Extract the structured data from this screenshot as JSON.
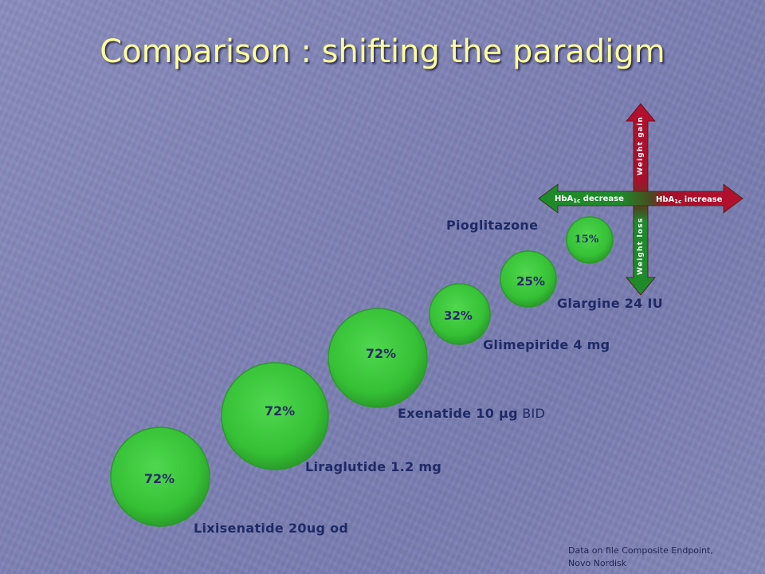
{
  "title": "Comparison : shifting the paradigm",
  "chart_data": {
    "type": "bubble",
    "title": "Comparison : shifting the paradigm",
    "series": [
      {
        "name": "Lixisenatide 20ug od",
        "label_parts": [
          "Lixisenatide 20ug od",
          ""
        ],
        "value": 72,
        "value_label": "72%"
      },
      {
        "name": "Liraglutide 1.2 mg",
        "label_parts": [
          "Liraglutide 1.2 mg",
          ""
        ],
        "value": 72,
        "value_label": "72%"
      },
      {
        "name": "Exenatide 10 µg BID",
        "label_parts": [
          "Exenatide 10 µg",
          " BID"
        ],
        "value": 72,
        "value_label": "72%"
      },
      {
        "name": "Glimepiride 4 mg",
        "label_parts": [
          "Glimepiride 4 mg",
          ""
        ],
        "value": 32,
        "value_label": "32%"
      },
      {
        "name": "Glargine 24 IU",
        "label_parts": [
          "Glargine 24 IU",
          ""
        ],
        "value": 25,
        "value_label": "25%"
      },
      {
        "name": "Pioglitazone",
        "label_parts": [
          "Pioglitazone",
          ""
        ],
        "value": 15,
        "value_label": "15%"
      }
    ],
    "axes": {
      "vertical_up": "Weight gain",
      "vertical_down": "Weight loss",
      "horizontal_left": {
        "base": "HbA",
        "sub": "1c",
        "rest": " decrease"
      },
      "horizontal_right": {
        "base": "HbA",
        "sub": "1c",
        "rest": " increase"
      }
    },
    "colors": {
      "bubble": "#3cc43c",
      "bubble_edge": "#2a9a2a",
      "bubble_text": "#2b2b66",
      "label_text": "#1e2a66",
      "title_text": "#ffff99",
      "arrow_gain": "#b3102e",
      "arrow_loss": "#1e8a2a",
      "arrow_decrease": "#1e8a2a",
      "arrow_increase": "#b3102e"
    }
  },
  "footnote": {
    "line1": "Data on file Composite Endpoint,",
    "line2": "Novo Nordisk"
  }
}
